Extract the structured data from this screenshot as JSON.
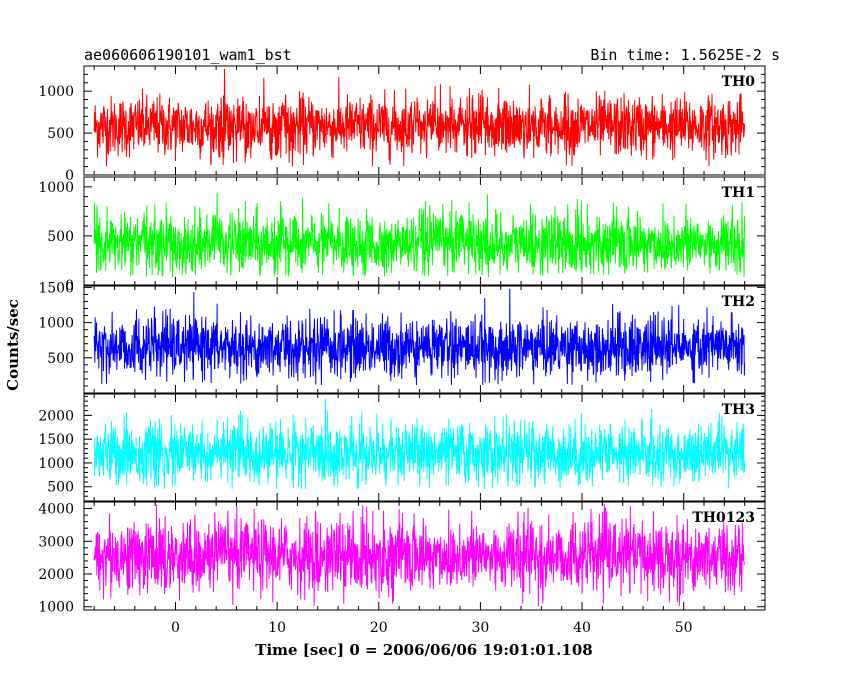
{
  "chart_data": {
    "type": "line",
    "title": "ae060606190101_wam1_bst",
    "subtitle": "Bin time: 1.5625E-2 s",
    "xlabel": "Time [sec] 0 = 2006/06/06 19:01:01.108",
    "ylabel": "Counts/sec",
    "xlim": [
      -9,
      58
    ],
    "x_ticks": [
      0,
      10,
      20,
      30,
      40,
      50
    ],
    "x_range_data": [
      -8,
      56
    ],
    "grid": false,
    "panels": [
      {
        "name": "TH0",
        "color": "#ff0000",
        "ylim": [
          0,
          1300
        ],
        "y_ticks": [
          0,
          500,
          1000
        ],
        "mean": 580,
        "spread": 180,
        "min": 90,
        "max": 1290
      },
      {
        "name": "TH1",
        "color": "#00ff00",
        "ylim": [
          0,
          1100
        ],
        "y_ticks": [
          0,
          500,
          1000
        ],
        "mean": 420,
        "spread": 160,
        "min": 80,
        "max": 1080
      },
      {
        "name": "TH2",
        "color": "#0000ff",
        "ylim": [
          0,
          1520
        ],
        "y_ticks": [
          500,
          1000,
          1500
        ],
        "mean": 650,
        "spread": 220,
        "min": 100,
        "max": 1480
      },
      {
        "name": "TH3",
        "color": "#00ffff",
        "ylim": [
          200,
          2450
        ],
        "y_ticks": [
          500,
          1000,
          1500,
          2000
        ],
        "mean": 1200,
        "spread": 320,
        "min": 450,
        "max": 2400
      },
      {
        "name": "TH0123",
        "color": "#ff00ff",
        "ylim": [
          900,
          4200
        ],
        "y_ticks": [
          1000,
          2000,
          3000,
          4000
        ],
        "mean": 2550,
        "spread": 550,
        "min": 1000,
        "max": 4150
      }
    ]
  }
}
